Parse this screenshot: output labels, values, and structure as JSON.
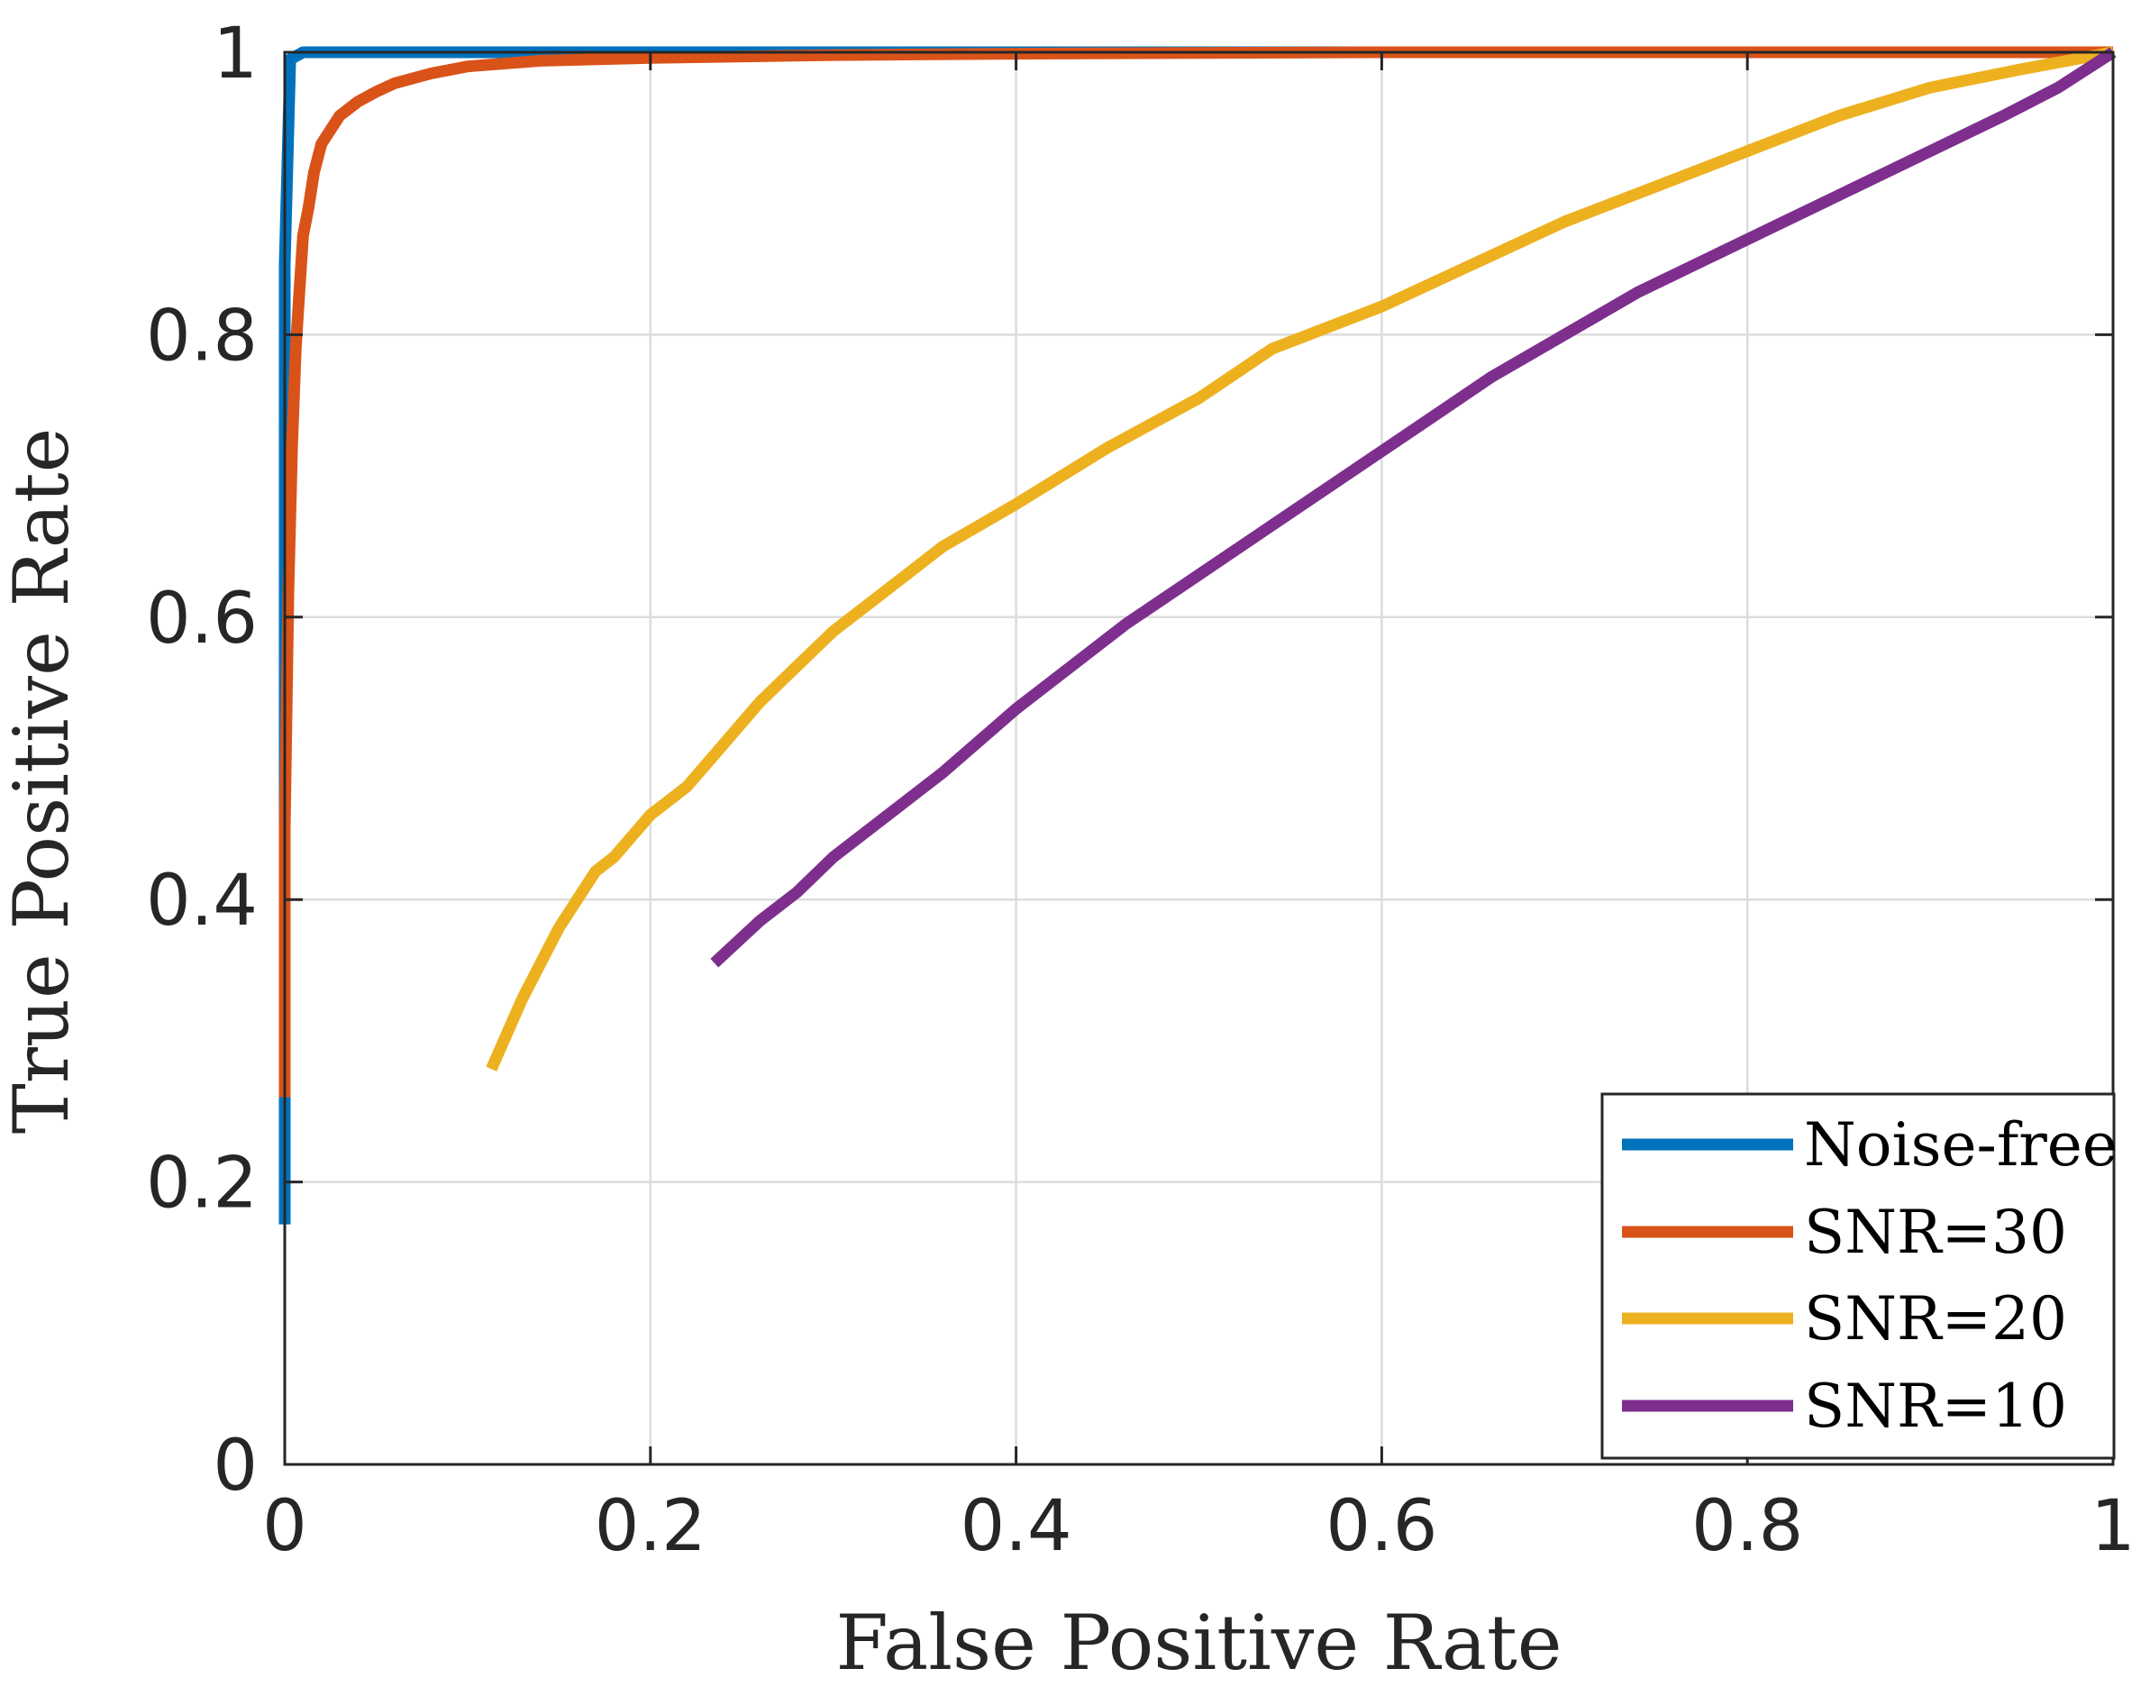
{
  "chart_data": {
    "type": "line",
    "title": "",
    "xlabel": "False Positive Rate",
    "ylabel": "True Positive Rate",
    "xlim": [
      0,
      1
    ],
    "ylim": [
      0,
      1
    ],
    "grid": true,
    "legend_position": "bottom-right",
    "x_ticks": [
      0,
      0.2,
      0.4,
      0.6,
      0.8,
      1
    ],
    "x_tick_labels": [
      "0",
      "0.2",
      "0.4",
      "0.6",
      "0.8",
      "1"
    ],
    "y_ticks": [
      0,
      0.2,
      0.4,
      0.6,
      0.8,
      1
    ],
    "y_tick_labels": [
      "0",
      "0.2",
      "0.4",
      "0.6",
      "0.8",
      "1"
    ],
    "series": [
      {
        "name": "Noise-free",
        "color": "#0072BD",
        "x": [
          0,
          0,
          0,
          0,
          0.003,
          0.01,
          1
        ],
        "y": [
          0.17,
          0.27,
          0.5,
          0.85,
          0.995,
          1.0,
          1.0
        ]
      },
      {
        "name": "SNR=30",
        "color": "#D95319",
        "x": [
          0,
          0,
          0.002,
          0.004,
          0.006,
          0.008,
          0.01,
          0.013,
          0.016,
          0.02,
          0.025,
          0.03,
          0.04,
          0.05,
          0.06,
          0.08,
          0.1,
          0.14,
          0.2,
          0.3,
          0.4,
          0.6,
          0.8,
          1.0
        ],
        "y": [
          0.26,
          0.45,
          0.62,
          0.72,
          0.79,
          0.83,
          0.87,
          0.89,
          0.915,
          0.935,
          0.945,
          0.955,
          0.965,
          0.972,
          0.978,
          0.985,
          0.99,
          0.994,
          0.996,
          0.998,
          0.999,
          1.0,
          1.0,
          1.0
        ]
      },
      {
        "name": "SNR=20",
        "color": "#EDB120",
        "x": [
          0.113,
          0.13,
          0.15,
          0.17,
          0.18,
          0.2,
          0.22,
          0.24,
          0.26,
          0.28,
          0.3,
          0.33,
          0.36,
          0.4,
          0.45,
          0.5,
          0.54,
          0.6,
          0.65,
          0.7,
          0.75,
          0.8,
          0.85,
          0.9,
          0.95,
          1.0
        ],
        "y": [
          0.28,
          0.33,
          0.38,
          0.42,
          0.43,
          0.46,
          0.48,
          0.51,
          0.54,
          0.565,
          0.59,
          0.62,
          0.65,
          0.68,
          0.72,
          0.755,
          0.79,
          0.82,
          0.85,
          0.88,
          0.905,
          0.93,
          0.955,
          0.975,
          0.988,
          1.0
        ]
      },
      {
        "name": "SNR=10",
        "color": "#7E2F8E",
        "x": [
          0.235,
          0.26,
          0.28,
          0.3,
          0.33,
          0.36,
          0.4,
          0.43,
          0.46,
          0.5,
          0.54,
          0.58,
          0.62,
          0.66,
          0.7,
          0.74,
          0.78,
          0.82,
          0.86,
          0.9,
          0.94,
          0.97,
          1.0
        ],
        "y": [
          0.355,
          0.385,
          0.405,
          0.43,
          0.46,
          0.49,
          0.535,
          0.565,
          0.595,
          0.63,
          0.665,
          0.7,
          0.735,
          0.77,
          0.8,
          0.83,
          0.855,
          0.88,
          0.905,
          0.93,
          0.955,
          0.975,
          1.0
        ]
      }
    ]
  }
}
